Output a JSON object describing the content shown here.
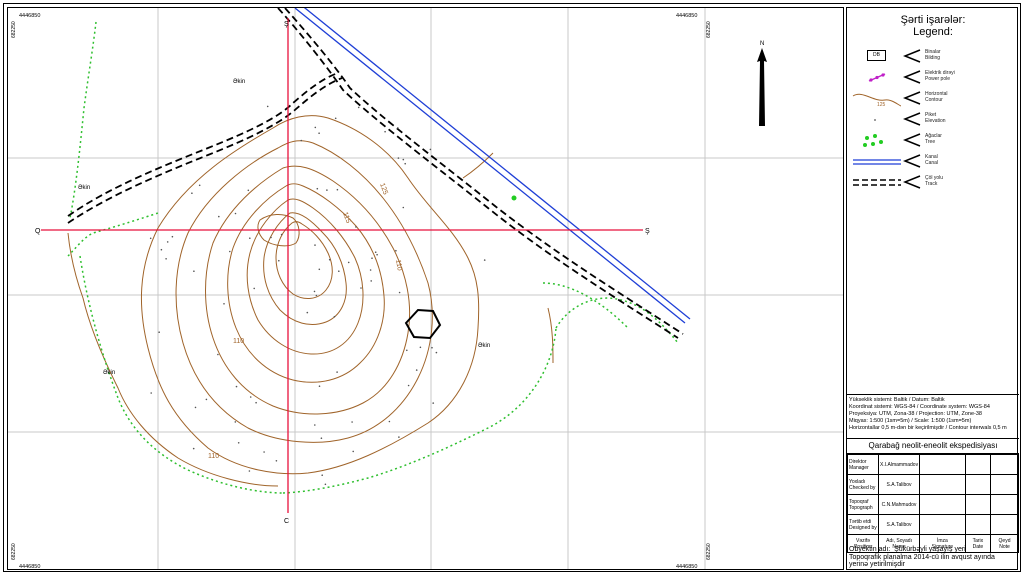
{
  "map": {
    "coords": {
      "top_left_easting": "4446850",
      "top_right_easting": "4446850",
      "bottom_left_easting": "4446850",
      "bottom_right_easting": "4446850",
      "left_top_northing": "682250",
      "left_bottom_northing": "682250",
      "right_top_northing": "682250",
      "right_bottom_northing": "682250"
    },
    "profile_labels": {
      "north_end": "Ş",
      "south_end": "C",
      "west_end": "Q",
      "east_end": "Ş"
    },
    "north_arrow_label": "N",
    "field_labels": [
      "Əkin",
      "Əkin",
      "Əkin",
      "Əkin"
    ],
    "contour_labels": [
      "125",
      "115",
      "110",
      "110",
      "110"
    ],
    "building_label": "DB"
  },
  "legend": {
    "title": "Şərti işarələr:",
    "subtitle": "Legend:",
    "items": [
      {
        "symbol": "building",
        "az": "Binalar",
        "en": "Bilding",
        "sample_text": "DB"
      },
      {
        "symbol": "power-pole",
        "az": "Elektrik dirəyi",
        "en": "Power pole"
      },
      {
        "symbol": "contour",
        "az": "Horizontal",
        "en": "Contour",
        "sample_text": "125"
      },
      {
        "symbol": "elevation",
        "az": "Piket",
        "en": "Elevation"
      },
      {
        "symbol": "tree",
        "az": "Ağaclar",
        "en": "Tree"
      },
      {
        "symbol": "canal",
        "az": "Kanal",
        "en": "Canal"
      },
      {
        "symbol": "track",
        "az": "Çöl yolu",
        "en": "Track"
      }
    ],
    "colors": {
      "contour": "#a0642a",
      "canal": "#1f3fd6",
      "power_pole": "#c020c8",
      "tree": "#22cc22",
      "profile": "#e8123c",
      "green_boundary": "#2fbf2f"
    }
  },
  "notes": [
    "Yükseklik sistemi: Baltik  /  Datum: Baltik",
    "Koordinat sistemi: WGS-84  /  Coordinate system: WGS-84",
    "Proyeksiya: UTM, Zona-38  /  Projection: UTM, Zone-38",
    "Miqyas:  1:500 (1sm=5m)  /  Scale:  1:500  (1sm=5m)",
    "Horizontallar 0,5 m-dən bir keçirilmişdir  /  Contour interwals 0,5  m"
  ],
  "expedition": "Qarabağ neolit-eneolit ekspedisiyası",
  "signatures": [
    {
      "role_az": "Direktor",
      "role_en": "Manager",
      "name": "X.I.Almammadov"
    },
    {
      "role_az": "Yoxladı",
      "role_en": "Checked by",
      "name": "S.A.Talibov"
    },
    {
      "role_az": "Topoqraf",
      "role_en": "Topograph",
      "name": "C.N.Mahmudov"
    },
    {
      "role_az": "Tərtib etdi",
      "role_en": "Designed by",
      "name": "S.A.Talibov"
    }
  ],
  "signature_header": {
    "c1_az": "Vəzifə",
    "c1_en": "Position",
    "c2_az": "Adı, Soyadı",
    "c2_en": "Name",
    "c3_az": "İmza",
    "c3_en": "Signature",
    "c4_az": "Tarix",
    "c4_en": "Date",
    "c5_az": "Qeyd",
    "c5_en": "Note"
  },
  "object": {
    "label": "Obyektin adı:",
    "name": "Şükürbəyli yaşayış yeri",
    "line2": "Topoqrafik planalma 2014-cü ilin avqust ayında",
    "line3": "yerinə yetirilmişdir"
  }
}
